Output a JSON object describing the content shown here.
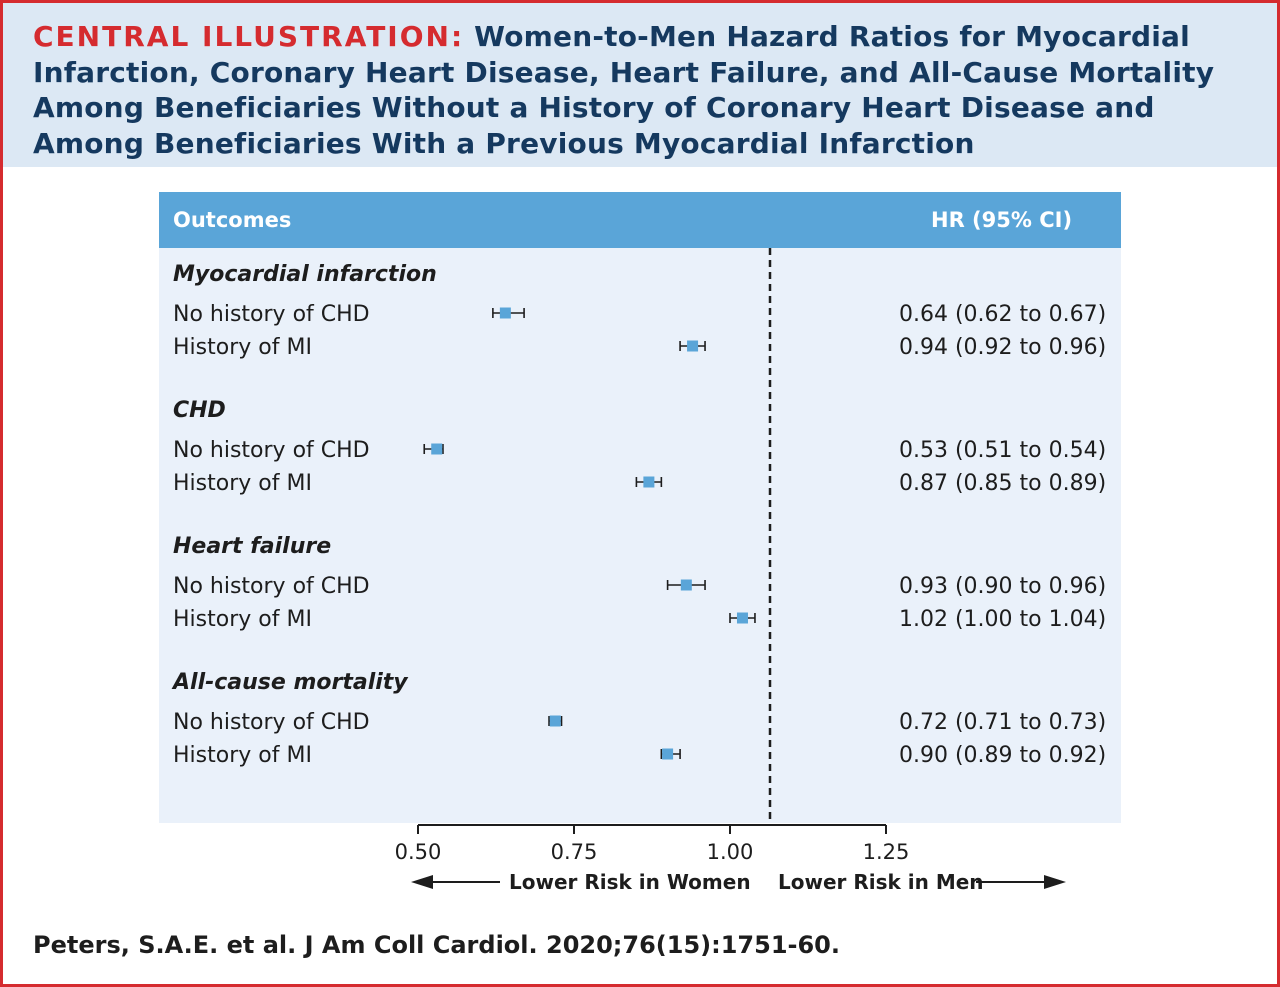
{
  "title": {
    "label": "CENTRAL ILLUSTRATION:",
    "text": "Women-to-Men Hazard Ratios for Myocardial Infarction, Coronary Heart Disease, Heart Failure, and All-Cause Mortality Among Beneficiaries Without a History of Coronary Heart Disease and Among Beneficiaries With a Previous Myocardial Infarction"
  },
  "citation": "Peters, S.A.E. et al. J Am Coll Cardiol. 2020;76(15):1751-60.",
  "colors": {
    "accent_red": "#d52b2f",
    "title_navy": "#15395f",
    "header_band": "#dce8f4",
    "table_head": "#5aa5d8",
    "panel_bg": "#eaf1fa",
    "marker": "#5aa5d8"
  },
  "chart_data": {
    "type": "forest",
    "columns": {
      "outcomes": "Outcomes",
      "hr": "HR (95% CI)"
    },
    "xlim": [
      0.5,
      1.25
    ],
    "ticks": [
      0.5,
      0.75,
      1.0,
      1.25
    ],
    "tick_labels": [
      "0.50",
      "0.75",
      "1.00",
      "1.25"
    ],
    "reference_line": 1.0,
    "direction_labels": {
      "left": "Lower Risk in Women",
      "right": "Lower Risk in Men"
    },
    "groups": [
      {
        "label": "Myocardial infarction",
        "rows": [
          {
            "label": "No history of CHD",
            "hr": 0.64,
            "lo": 0.62,
            "hi": 0.67,
            "text": "0.64 (0.62 to 0.67)"
          },
          {
            "label": "History of MI",
            "hr": 0.94,
            "lo": 0.92,
            "hi": 0.96,
            "text": "0.94 (0.92 to 0.96)"
          }
        ]
      },
      {
        "label": "CHD",
        "rows": [
          {
            "label": "No history of CHD",
            "hr": 0.53,
            "lo": 0.51,
            "hi": 0.54,
            "text": "0.53 (0.51 to 0.54)"
          },
          {
            "label": "History of MI",
            "hr": 0.87,
            "lo": 0.85,
            "hi": 0.89,
            "text": "0.87 (0.85 to 0.89)"
          }
        ]
      },
      {
        "label": "Heart failure",
        "rows": [
          {
            "label": "No history of CHD",
            "hr": 0.93,
            "lo": 0.9,
            "hi": 0.96,
            "text": "0.93 (0.90 to 0.96)"
          },
          {
            "label": "History of MI",
            "hr": 1.02,
            "lo": 1.0,
            "hi": 1.04,
            "text": "1.02 (1.00 to 1.04)"
          }
        ]
      },
      {
        "label": "All-cause mortality",
        "rows": [
          {
            "label": "No history of CHD",
            "hr": 0.72,
            "lo": 0.71,
            "hi": 0.73,
            "text": "0.72 (0.71 to 0.73)"
          },
          {
            "label": "History of MI",
            "hr": 0.9,
            "lo": 0.89,
            "hi": 0.92,
            "text": "0.90 (0.89 to 0.92)"
          }
        ]
      }
    ]
  }
}
